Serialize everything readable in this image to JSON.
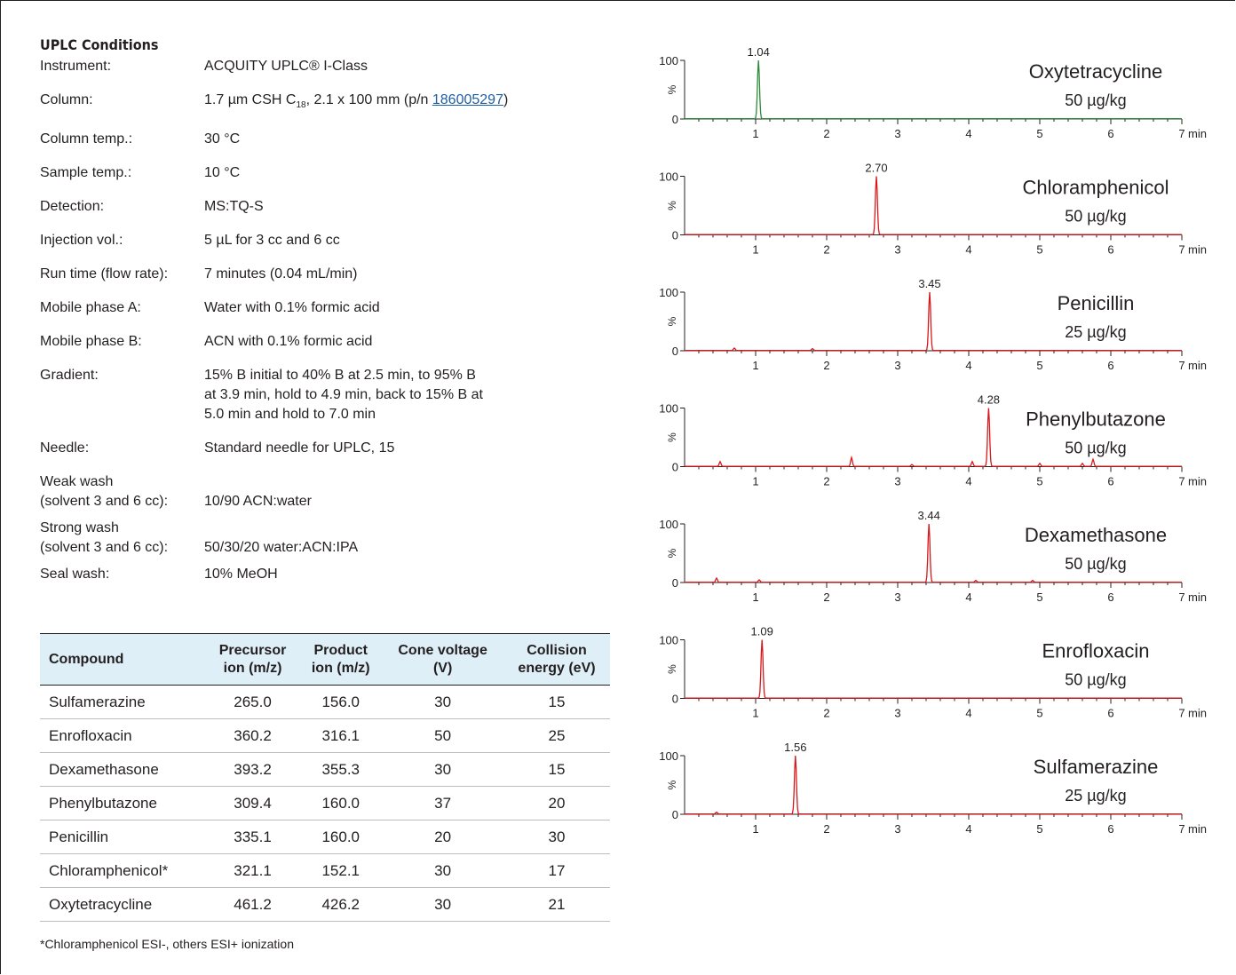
{
  "conditions": {
    "title": "UPLC Conditions",
    "rows": [
      {
        "label": "Instrument:",
        "value": "ACQUITY UPLC® I-Class"
      },
      {
        "label": "Column:",
        "value_prefix": "1.7 µm CSH C",
        "value_sub": "18",
        "value_mid": ", 2.1 x 100 mm (p/n ",
        "value_link": "186005297",
        "value_suffix": ")"
      },
      {
        "label": "Column temp.:",
        "value": "30 °C"
      },
      {
        "label": "Sample temp.:",
        "value": "10 °C"
      },
      {
        "label": "Detection:",
        "value": "MS:TQ-S"
      },
      {
        "label": "Injection vol.:",
        "value": "5 µL for 3 cc and 6 cc"
      },
      {
        "label": "Run time (flow rate):",
        "value": "7 minutes (0.04 mL/min)"
      },
      {
        "label": "Mobile phase A:",
        "value": "Water with 0.1% formic acid"
      },
      {
        "label": "Mobile phase B:",
        "value": "ACN with 0.1% formic acid"
      },
      {
        "label": "Gradient:",
        "value_lines": [
          "15% B initial to 40% B at 2.5 min, to 95% B",
          "at 3.9 min, hold to 4.9 min, back to 15% B at",
          "5.0 min and hold to 7.0 min"
        ]
      },
      {
        "label": "Needle:",
        "value": "Standard needle for UPLC, 15"
      },
      {
        "label_lines": [
          "Weak wash",
          "(solvent 3 and 6 cc):"
        ],
        "value": "10/90 ACN:water"
      },
      {
        "label_lines": [
          "Strong wash",
          "(solvent 3 and 6 cc):"
        ],
        "value": "50/30/20 water:ACN:IPA"
      },
      {
        "label": "Seal wash:",
        "value": "10% MeOH"
      }
    ]
  },
  "table": {
    "headers": [
      [
        "Compound"
      ],
      [
        "Precursor",
        "ion (m/z)"
      ],
      [
        "Product",
        "ion (m/z)"
      ],
      [
        "Cone voltage",
        "(V)"
      ],
      [
        "Collision",
        "energy (eV)"
      ]
    ],
    "rows": [
      [
        "Sulfamerazine",
        "265.0",
        "156.0",
        "30",
        "15"
      ],
      [
        "Enrofloxacin",
        "360.2",
        "316.1",
        "50",
        "25"
      ],
      [
        "Dexamethasone",
        "393.2",
        "355.3",
        "30",
        "15"
      ],
      [
        "Phenylbutazone",
        "309.4",
        "160.0",
        "37",
        "20"
      ],
      [
        "Penicillin",
        "335.1",
        "160.0",
        "20",
        "30"
      ],
      [
        "Chloramphenicol*",
        "321.1",
        "152.1",
        "30",
        "17"
      ],
      [
        "Oxytetracycline",
        "461.2",
        "426.2",
        "30",
        "21"
      ]
    ],
    "footnote": "*Chloramphenicol ESI-, others ESI+ ionization"
  },
  "chart_data": {
    "type": "line",
    "x_ticks": [
      "1",
      "2",
      "3",
      "4",
      "5",
      "6",
      "7"
    ],
    "x_unit": "min",
    "y_tick_label": "100",
    "y_zero_label": "0",
    "y_axis_label": "%",
    "xlim": [
      0,
      7
    ],
    "ylim": [
      0,
      100
    ],
    "panels": [
      {
        "compound": "Oxytetracycline",
        "conc": "50 µg/kg",
        "peak_rt": 1.04,
        "peak_label": "1.04",
        "color": "#2e8b3a",
        "minor_peaks": []
      },
      {
        "compound": "Chloramphenicol",
        "conc": "50 µg/kg",
        "peak_rt": 2.7,
        "peak_label": "2.70",
        "color": "#d7191c",
        "minor_peaks": []
      },
      {
        "compound": "Penicillin",
        "conc": "25 µg/kg",
        "peak_rt": 3.45,
        "peak_label": "3.45",
        "color": "#d7191c",
        "minor_peaks": [
          [
            0.7,
            4
          ],
          [
            1.8,
            3
          ]
        ]
      },
      {
        "compound": "Phenylbutazone",
        "conc": "50 µg/kg",
        "peak_rt": 4.28,
        "peak_label": "4.28",
        "color": "#d7191c",
        "minor_peaks": [
          [
            0.5,
            8
          ],
          [
            2.35,
            15
          ],
          [
            3.2,
            3
          ],
          [
            4.05,
            8
          ],
          [
            5.0,
            5
          ],
          [
            5.6,
            5
          ],
          [
            5.75,
            12
          ]
        ]
      },
      {
        "compound": "Dexamethasone",
        "conc": "50 µg/kg",
        "peak_rt": 3.44,
        "peak_label": "3.44",
        "color": "#d7191c",
        "minor_peaks": [
          [
            0.45,
            7
          ],
          [
            1.05,
            4
          ],
          [
            4.1,
            3
          ],
          [
            4.9,
            3
          ]
        ]
      },
      {
        "compound": "Enrofloxacin",
        "conc": "50 µg/kg",
        "peak_rt": 1.09,
        "peak_label": "1.09",
        "color": "#d7191c",
        "minor_peaks": []
      },
      {
        "compound": "Sulfamerazine",
        "conc": "25 µg/kg",
        "peak_rt": 1.56,
        "peak_label": "1.56",
        "color": "#d7191c",
        "minor_peaks": [
          [
            0.45,
            3
          ]
        ]
      }
    ]
  }
}
